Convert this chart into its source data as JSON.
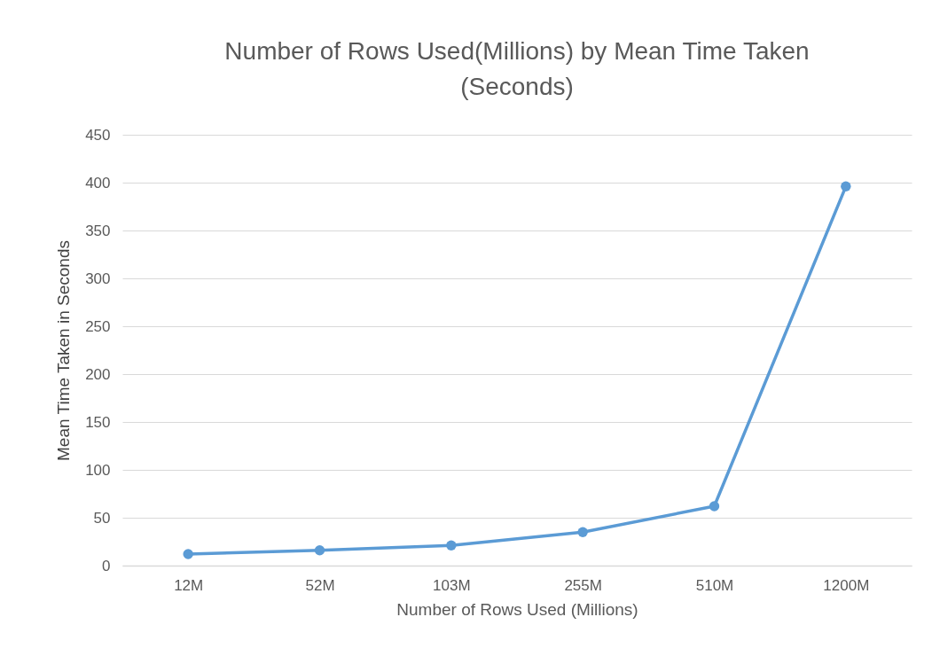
{
  "chart_data": {
    "type": "line",
    "title": "Number of Rows Used(Millions) by Mean Time Taken (Seconds)",
    "xlabel": "Number of Rows Used (Millions)",
    "ylabel": "Mean Time Taken in Seconds",
    "categories": [
      "12M",
      "52M",
      "103M",
      "255M",
      "510M",
      "1200M"
    ],
    "series": [
      {
        "color": "#5b9bd5",
        "values": [
          12,
          16,
          21,
          35,
          62,
          396
        ]
      }
    ],
    "ylim": [
      0,
      450
    ],
    "yticks": [
      0,
      50,
      100,
      150,
      200,
      250,
      300,
      350,
      400,
      450
    ],
    "grid": "y",
    "marker": "circle",
    "line_style": "solid"
  }
}
